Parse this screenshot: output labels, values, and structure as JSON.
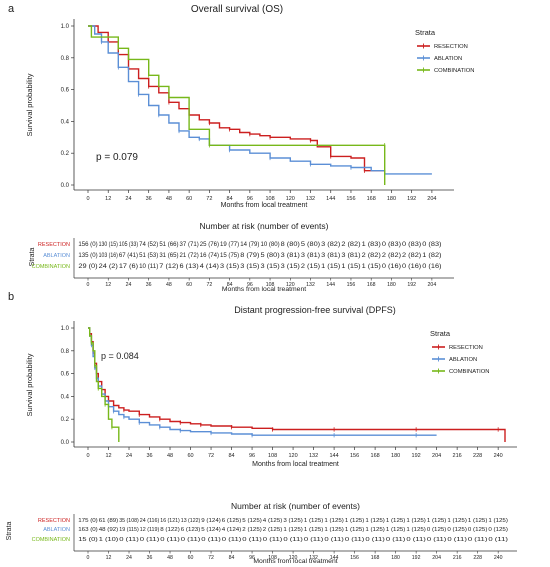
{
  "colors": {
    "resection": "#cc1f1f",
    "ablation": "#5b8fd6",
    "combination": "#77b81a",
    "axis": "#333333"
  },
  "chart_data": [
    {
      "panel_label": "a",
      "type": "line",
      "step": true,
      "title": "Overall survival (OS)",
      "xlabel": "Months from local treatment",
      "ylabel": "Survival probability",
      "xlim": [
        0,
        210
      ],
      "ylim": [
        0,
        1.0
      ],
      "xticks": [
        0,
        12,
        24,
        36,
        48,
        60,
        72,
        84,
        96,
        108,
        120,
        132,
        144,
        156,
        168,
        180,
        192,
        204
      ],
      "yticks": [
        0,
        0.2,
        0.4,
        0.6,
        0.8,
        1.0
      ],
      "ytick_labels": [
        "0.0",
        "0.2",
        "0.4",
        "0.6",
        "0.8",
        "1.0"
      ],
      "annotation": "p = 0.079",
      "legend": {
        "title": "Strata",
        "position": "top-right"
      },
      "series": [
        {
          "name": "RESECTION",
          "color": "#cc1f1f",
          "x": [
            0,
            6,
            12,
            18,
            24,
            30,
            36,
            42,
            48,
            54,
            60,
            66,
            72,
            78,
            84,
            90,
            96,
            102,
            108,
            120,
            132,
            136,
            144,
            156,
            164,
            176
          ],
          "y": [
            1.0,
            0.96,
            0.9,
            0.82,
            0.73,
            0.67,
            0.62,
            0.58,
            0.52,
            0.48,
            0.44,
            0.41,
            0.39,
            0.36,
            0.35,
            0.33,
            0.32,
            0.31,
            0.3,
            0.29,
            0.28,
            0.24,
            0.18,
            0.17,
            0.09,
            0.09
          ]
        },
        {
          "name": "ABLATION",
          "color": "#5b8fd6",
          "x": [
            0,
            4,
            8,
            12,
            18,
            24,
            30,
            36,
            42,
            48,
            54,
            60,
            66,
            72,
            84,
            96,
            108,
            120,
            132,
            144,
            156,
            168,
            176,
            204
          ],
          "y": [
            1.0,
            0.95,
            0.9,
            0.83,
            0.74,
            0.65,
            0.57,
            0.5,
            0.44,
            0.39,
            0.34,
            0.3,
            0.29,
            0.25,
            0.22,
            0.2,
            0.17,
            0.15,
            0.13,
            0.12,
            0.11,
            0.09,
            0.07,
            0.07
          ]
        },
        {
          "name": "COMBINATION",
          "color": "#77b81a",
          "x": [
            0,
            2,
            18,
            24,
            36,
            42,
            48,
            60,
            72,
            84,
            176,
            176
          ],
          "y": [
            1.0,
            0.93,
            0.86,
            0.79,
            0.69,
            0.62,
            0.55,
            0.35,
            0.25,
            0.25,
            0.25,
            0.0
          ]
        }
      ],
      "risk_table": {
        "title": "Number at risk (number of events)",
        "xlabel": "Months from local treatment",
        "strata_label": "Strata",
        "rows": [
          {
            "name": "RESECTION",
            "cells": [
              "156 (0)",
              "130 (15)",
              "105 (33)",
              "74 (52)",
              "51 (66)",
              "37 (71)",
              "25 (76)",
              "19 (77)",
              "14 (79)",
              "10 (80)",
              "8 (80)",
              "5 (80)",
              "3 (82)",
              "2 (82)",
              "1 (83)",
              "0 (83)",
              "0 (83)",
              "0 (83)"
            ]
          },
          {
            "name": "ABLATION",
            "cells": [
              "135 (0)",
              "103 (16)",
              "67 (41)",
              "51 (53)",
              "31 (65)",
              "21 (72)",
              "16 (74)",
              "15 (75)",
              "8 (79)",
              "5 (80)",
              "3 (81)",
              "3 (81)",
              "3 (81)",
              "3 (81)",
              "2 (82)",
              "2 (82)",
              "2 (82)",
              "1 (82)"
            ]
          },
          {
            "name": "COMBINATION",
            "cells": [
              "29 (0)",
              "24 (2)",
              "17 (6)",
              "10 (11)",
              "7 (12)",
              "6 (13)",
              "4 (14)",
              "3 (15)",
              "3 (15)",
              "3 (15)",
              "3 (15)",
              "2 (15)",
              "1 (15)",
              "1 (15)",
              "1 (15)",
              "0 (16)",
              "0 (16)",
              "0 (16)"
            ]
          }
        ]
      }
    },
    {
      "panel_label": "b",
      "type": "line",
      "step": true,
      "title": "Distant progression-free survival (DPFS)",
      "xlabel": "Months from local treatment",
      "ylabel": "Survival probability",
      "xlim": [
        0,
        244
      ],
      "ylim": [
        0,
        1.0
      ],
      "xticks": [
        0,
        12,
        24,
        36,
        48,
        60,
        72,
        84,
        96,
        108,
        120,
        132,
        144,
        156,
        168,
        180,
        192,
        204,
        216,
        228,
        240
      ],
      "yticks": [
        0,
        0.2,
        0.4,
        0.6,
        0.8,
        1.0
      ],
      "ytick_labels": [
        "0.0",
        "0.2",
        "0.4",
        "0.6",
        "0.8",
        "1.0"
      ],
      "annotation": "p = 0.084",
      "legend": {
        "title": "Strata",
        "position": "top-right"
      },
      "series": [
        {
          "name": "RESECTION",
          "color": "#cc1f1f",
          "x": [
            0,
            1,
            2,
            3,
            4,
            5,
            6,
            8,
            10,
            12,
            15,
            18,
            21,
            24,
            30,
            36,
            42,
            48,
            54,
            60,
            66,
            72,
            84,
            96,
            108,
            120,
            144,
            168,
            192,
            216,
            240,
            244
          ],
          "y": [
            1.0,
            0.95,
            0.88,
            0.78,
            0.69,
            0.6,
            0.53,
            0.46,
            0.4,
            0.36,
            0.32,
            0.3,
            0.28,
            0.27,
            0.24,
            0.22,
            0.2,
            0.18,
            0.17,
            0.16,
            0.15,
            0.14,
            0.13,
            0.12,
            0.11,
            0.11,
            0.11,
            0.11,
            0.11,
            0.11,
            0.11,
            0.0
          ]
        },
        {
          "name": "ABLATION",
          "color": "#5b8fd6",
          "x": [
            0,
            1,
            2,
            3,
            4,
            5,
            6,
            8,
            10,
            12,
            15,
            18,
            21,
            24,
            30,
            36,
            42,
            48,
            54,
            60,
            72,
            84,
            96,
            120,
            144,
            168,
            192,
            204
          ],
          "y": [
            1.0,
            0.93,
            0.85,
            0.75,
            0.65,
            0.56,
            0.49,
            0.42,
            0.36,
            0.31,
            0.27,
            0.24,
            0.22,
            0.2,
            0.17,
            0.15,
            0.13,
            0.11,
            0.1,
            0.09,
            0.08,
            0.07,
            0.06,
            0.06,
            0.06,
            0.06,
            0.06,
            0.06
          ]
        },
        {
          "name": "COMBINATION",
          "color": "#77b81a",
          "x": [
            0,
            1,
            2,
            3,
            4,
            5,
            6,
            8,
            10,
            12,
            14,
            18,
            18
          ],
          "y": [
            1.0,
            0.93,
            0.87,
            0.8,
            0.67,
            0.53,
            0.47,
            0.4,
            0.33,
            0.2,
            0.13,
            0.13,
            0.0
          ]
        }
      ],
      "risk_table": {
        "title": "Number at risk (number of events)",
        "xlabel": "Months from local treatment",
        "strata_label": "Strata",
        "rows": [
          {
            "name": "RESECTION",
            "cells": [
              "175 (0)",
              "61 (89)",
              "35 (108)",
              "24 (116)",
              "16 (121)",
              "13 (122)",
              "9 (124)",
              "6 (125)",
              "5 (125)",
              "4 (125)",
              "3 (125)",
              "1 (125)",
              "1 (125)",
              "1 (125)",
              "1 (125)",
              "1 (125)",
              "1 (125)",
              "1 (125)",
              "1 (125)",
              "1 (125)",
              "1 (125)"
            ]
          },
          {
            "name": "ABLATION",
            "cells": [
              "163 (0)",
              "48 (92)",
              "19 (115)",
              "12 (119)",
              "8 (122)",
              "6 (123)",
              "5 (124)",
              "4 (124)",
              "2 (125)",
              "2 (125)",
              "1 (125)",
              "1 (125)",
              "1 (125)",
              "1 (125)",
              "1 (125)",
              "1 (125)",
              "1 (125)",
              "0 (125)",
              "0 (125)",
              "0 (125)",
              "0 (125)"
            ]
          },
          {
            "name": "COMBINATION",
            "cells": [
              "15 (0)",
              "1 (10)",
              "0 (11)",
              "0 (11)",
              "0 (11)",
              "0 (11)",
              "0 (11)",
              "0 (11)",
              "0 (11)",
              "0 (11)",
              "0 (11)",
              "0 (11)",
              "0 (11)",
              "0 (11)",
              "0 (11)",
              "0 (11)",
              "0 (11)",
              "0 (11)",
              "0 (11)",
              "0 (11)",
              "0 (11)"
            ]
          }
        ]
      }
    }
  ]
}
